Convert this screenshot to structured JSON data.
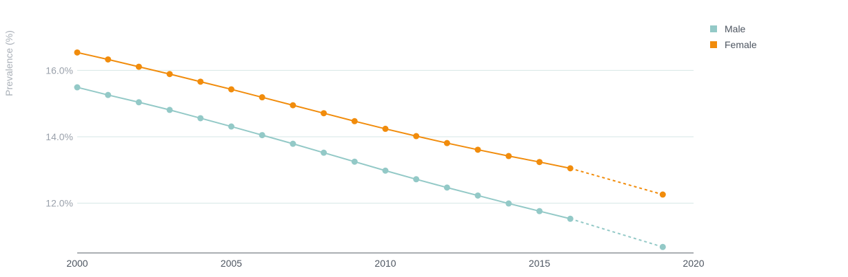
{
  "chart_data": {
    "type": "line",
    "ylabel": "Prevalence (%)",
    "xlim": [
      2000,
      2020
    ],
    "ylim": [
      10.5,
      17.5
    ],
    "x_ticks": [
      2000,
      2005,
      2010,
      2015,
      2020
    ],
    "y_ticks": [
      12.0,
      14.0,
      16.0
    ],
    "y_tick_labels": [
      "12.0%",
      "14.0%",
      "16.0%"
    ],
    "grid": true,
    "legend_position": "top-right",
    "series": [
      {
        "name": "Male",
        "color": "#93c9c7",
        "points": [
          {
            "x": 2000,
            "y": 15.49
          },
          {
            "x": 2001,
            "y": 15.26
          },
          {
            "x": 2002,
            "y": 15.04
          },
          {
            "x": 2003,
            "y": 14.81
          },
          {
            "x": 2004,
            "y": 14.56
          },
          {
            "x": 2005,
            "y": 14.31
          },
          {
            "x": 2006,
            "y": 14.05
          },
          {
            "x": 2007,
            "y": 13.79
          },
          {
            "x": 2008,
            "y": 13.52
          },
          {
            "x": 2009,
            "y": 13.25
          },
          {
            "x": 2010,
            "y": 12.98
          },
          {
            "x": 2011,
            "y": 12.72
          },
          {
            "x": 2012,
            "y": 12.47
          },
          {
            "x": 2013,
            "y": 12.23
          },
          {
            "x": 2014,
            "y": 11.99
          },
          {
            "x": 2015,
            "y": 11.76
          },
          {
            "x": 2016,
            "y": 11.53
          }
        ],
        "projection": [
          {
            "x": 2016,
            "y": 11.53
          },
          {
            "x": 2019,
            "y": 10.68
          }
        ]
      },
      {
        "name": "Female",
        "color": "#f18c0c",
        "points": [
          {
            "x": 2000,
            "y": 16.54
          },
          {
            "x": 2001,
            "y": 16.33
          },
          {
            "x": 2002,
            "y": 16.11
          },
          {
            "x": 2003,
            "y": 15.89
          },
          {
            "x": 2004,
            "y": 15.66
          },
          {
            "x": 2005,
            "y": 15.43
          },
          {
            "x": 2006,
            "y": 15.19
          },
          {
            "x": 2007,
            "y": 14.95
          },
          {
            "x": 2008,
            "y": 14.71
          },
          {
            "x": 2009,
            "y": 14.47
          },
          {
            "x": 2010,
            "y": 14.24
          },
          {
            "x": 2011,
            "y": 14.02
          },
          {
            "x": 2012,
            "y": 13.81
          },
          {
            "x": 2013,
            "y": 13.61
          },
          {
            "x": 2014,
            "y": 13.42
          },
          {
            "x": 2015,
            "y": 13.24
          },
          {
            "x": 2016,
            "y": 13.05
          }
        ],
        "projection": [
          {
            "x": 2016,
            "y": 13.05
          },
          {
            "x": 2019,
            "y": 12.26
          }
        ]
      }
    ]
  }
}
